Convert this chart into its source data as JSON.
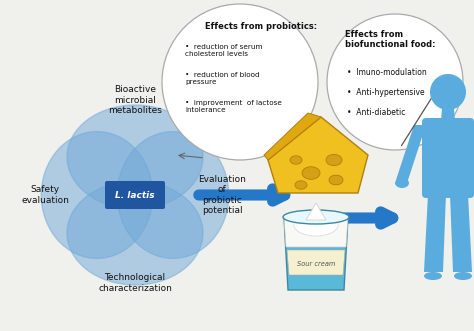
{
  "bg_color": "#f0f0ec",
  "venn_color": "#6fa8d8",
  "venn_alpha": 0.5,
  "center_color": "#2055a0",
  "arrow_color": "#2577c8",
  "circle_edge": "#aaaaaa",
  "text_dark": "#111111",
  "text_white": "#ffffff",
  "c1_label": "Bioactive\nmicrobial\nmetabolites",
  "c2_label": "Safety\nevaluation",
  "c3_label": "Evaluation\nof\nprobiotic\npotential",
  "c4_label": "Technological\ncharacterization",
  "center_label": "L. lactis",
  "prob_title": "Effects from probiotics:",
  "prob_items": [
    "reduction of serum\ncholesterol levels",
    "reduction of blood\npressure",
    "improvement  of lactose\nintolerance"
  ],
  "bio_title": "Effects from\nbiofunctional food:",
  "bio_items": [
    "Imuno-modulation",
    "Anti-hypertensive",
    "Anti-diabetic"
  ],
  "cheese_color": "#f0c020",
  "cheese_hole": "#d4a015",
  "cheese_edge": "#b08010",
  "human_color": "#5aacde",
  "sour_label": "Sour cream",
  "jar_main": "#5ab8d8",
  "jar_label_bg": "#f5f0d0",
  "jar_cream": "#f8f8f5"
}
